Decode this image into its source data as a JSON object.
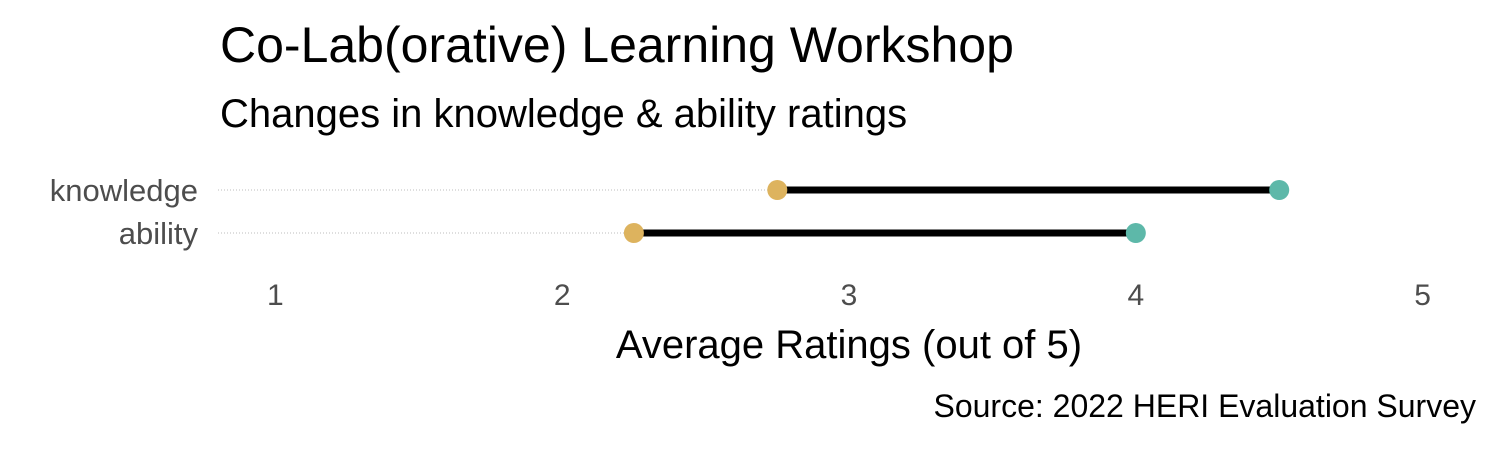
{
  "title": "Co-Lab(orative) Learning Workshop",
  "subtitle": "Changes in knowledge & ability ratings",
  "caption": "Source: 2022 HERI Evaluation Survey",
  "colors": {
    "pre": "#DDB35E",
    "post": "#5DB8A9",
    "segment": "#000000",
    "guide": "#bdbdbd"
  },
  "chart_data": {
    "type": "dumbbell",
    "categories": [
      "knowledge",
      "ability"
    ],
    "series": [
      {
        "values": [
          2.75,
          2.25
        ]
      },
      {
        "values": [
          4.5,
          4.0
        ]
      }
    ],
    "xlabel": "Average Ratings (out of 5)",
    "xlim": [
      0.8,
      5.2
    ],
    "xticks": [
      1,
      2,
      3,
      4,
      5
    ],
    "grid": false
  }
}
